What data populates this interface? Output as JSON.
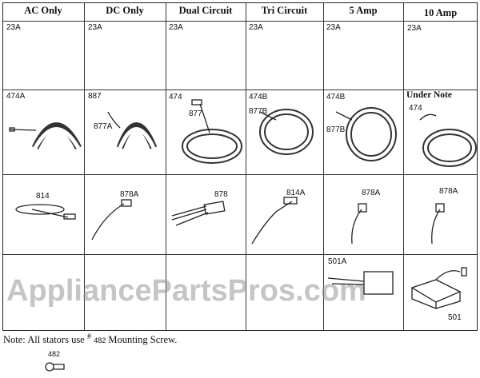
{
  "watermark": "AppliancePartsPros.com",
  "columns": [
    "AC Only",
    "DC Only",
    "Dual Circuit",
    "Tri Circuit",
    "5 Amp",
    "10 Amp"
  ],
  "rows": [
    {
      "cells": [
        [
          "23A"
        ],
        [
          "23A"
        ],
        [
          "23A"
        ],
        [
          "23A"
        ],
        [
          "23A"
        ],
        [
          "23A"
        ]
      ]
    },
    {
      "cells": [
        [
          "474A"
        ],
        [
          "887",
          "877A"
        ],
        [
          "474",
          "877"
        ],
        [
          "474B",
          "877B"
        ],
        [
          "474B",
          "877B"
        ],
        [
          "Under Note",
          "474"
        ]
      ]
    },
    {
      "cells": [
        [
          "814"
        ],
        [
          "878A"
        ],
        [
          "878"
        ],
        [
          "814A"
        ],
        [
          "878A"
        ],
        [
          "878A"
        ]
      ]
    },
    {
      "cells": [
        [],
        [],
        [],
        [],
        [
          "501A"
        ],
        [
          "501"
        ]
      ]
    }
  ],
  "note": {
    "prefix": "Note: All stators use ",
    "hash": "#",
    "number": "482",
    "suffix": " Mounting Screw."
  },
  "screw_label": "482"
}
